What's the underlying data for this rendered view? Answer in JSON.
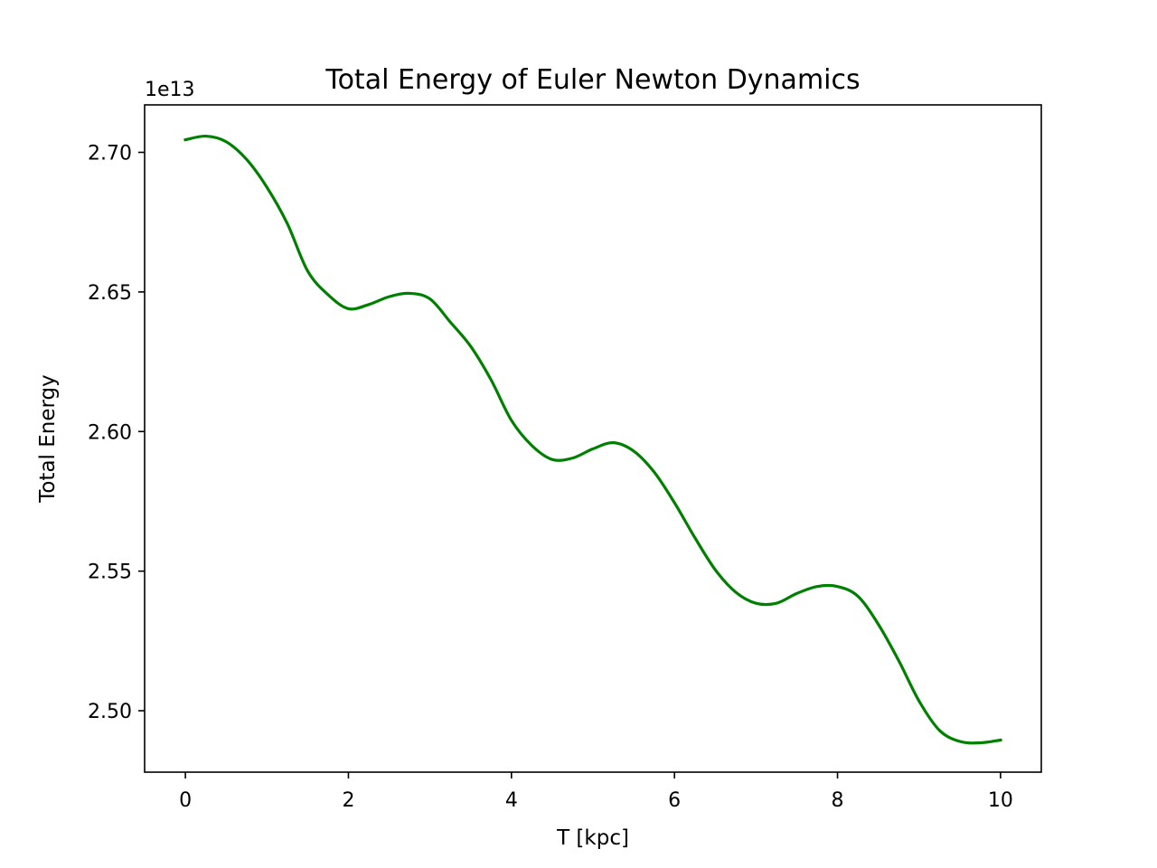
{
  "chart_data": {
    "type": "line",
    "title": "Total Energy of Euler Newton Dynamics",
    "xlabel": "T [kpc]",
    "ylabel": "Total Energy",
    "y_offset_label": "1e13",
    "xlim": [
      -0.5,
      10.5
    ],
    "ylim": [
      2.478,
      2.717
    ],
    "x_ticks": [
      0,
      2,
      4,
      6,
      8,
      10
    ],
    "x_tick_labels": [
      "0",
      "2",
      "4",
      "6",
      "8",
      "10"
    ],
    "y_ticks": [
      2.5,
      2.55,
      2.6,
      2.65,
      2.7
    ],
    "y_tick_labels": [
      "2.50",
      "2.55",
      "2.60",
      "2.65",
      "2.70"
    ],
    "grid": false,
    "series": [
      {
        "color": "#008000",
        "x": [
          0.0,
          0.25,
          0.5,
          0.75,
          1.0,
          1.25,
          1.5,
          1.75,
          2.0,
          2.25,
          2.5,
          2.75,
          3.0,
          3.25,
          3.5,
          3.75,
          4.0,
          4.25,
          4.5,
          4.75,
          5.0,
          5.25,
          5.5,
          5.75,
          6.0,
          6.25,
          6.5,
          6.75,
          7.0,
          7.25,
          7.5,
          7.75,
          8.0,
          8.25,
          8.5,
          8.75,
          9.0,
          9.25,
          9.5,
          9.75,
          10.0
        ],
        "y": [
          2.7045,
          2.7058,
          2.7038,
          2.6975,
          2.6875,
          2.6745,
          2.6575,
          2.649,
          2.644,
          2.6455,
          2.6483,
          2.6495,
          2.6475,
          2.6392,
          2.6305,
          2.6185,
          2.604,
          2.595,
          2.59,
          2.5905,
          2.5938,
          2.596,
          2.593,
          2.5855,
          2.5745,
          2.562,
          2.5505,
          2.5425,
          2.5385,
          2.5385,
          2.542,
          2.5445,
          2.5445,
          2.541,
          2.531,
          2.518,
          2.5035,
          2.493,
          2.489,
          2.4885,
          2.4895
        ]
      }
    ]
  }
}
